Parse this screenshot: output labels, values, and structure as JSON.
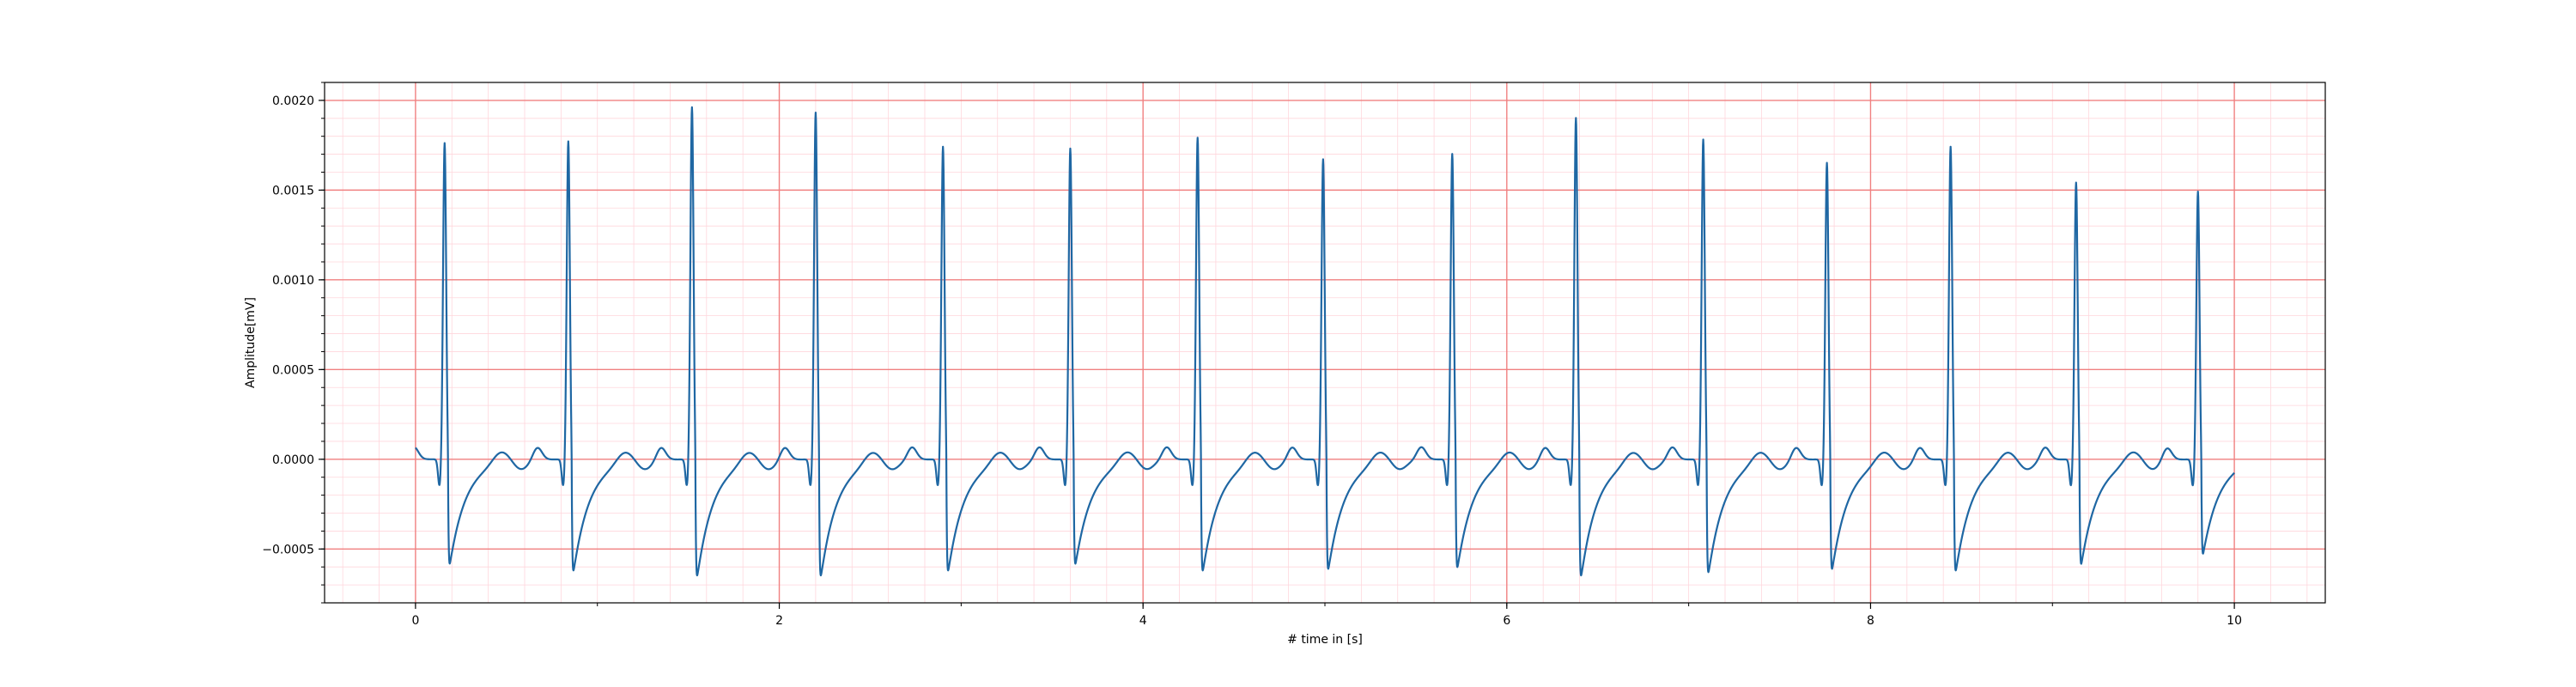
{
  "chart_data": {
    "type": "line",
    "title": "",
    "xlabel": "# time in [s]",
    "ylabel": "Amplitude[mV]",
    "xlim": [
      -0.5,
      10.5
    ],
    "ylim": [
      -0.0008,
      0.0021
    ],
    "x_ticks": [
      0,
      2,
      4,
      6,
      8,
      10
    ],
    "x_tick_labels": [
      "0",
      "2",
      "4",
      "6",
      "8",
      "10"
    ],
    "y_ticks": [
      -0.0005,
      0.0,
      0.0005,
      0.001,
      0.0015,
      0.002
    ],
    "y_tick_labels": [
      "−0.0005",
      "0.0000",
      "0.0005",
      "0.0010",
      "0.0015",
      "0.0020"
    ],
    "grid": true,
    "major_grid_color": "#f08080",
    "minor_grid_color": "#ffd6dc",
    "line_color": "#1f67a3",
    "x_start": 0,
    "x_end": 10,
    "beats": [
      {
        "t": 0.16,
        "r": 0.00177,
        "s": -0.00058
      },
      {
        "t": 0.84,
        "r": 0.00178,
        "s": -0.00062
      },
      {
        "t": 1.52,
        "r": 0.00197,
        "s": -0.00065
      },
      {
        "t": 2.2,
        "r": 0.00194,
        "s": -0.00065
      },
      {
        "t": 2.9,
        "r": 0.00175,
        "s": -0.00062
      },
      {
        "t": 3.6,
        "r": 0.00174,
        "s": -0.00058
      },
      {
        "t": 4.3,
        "r": 0.0018,
        "s": -0.00062
      },
      {
        "t": 4.99,
        "r": 0.00168,
        "s": -0.00061
      },
      {
        "t": 5.7,
        "r": 0.00171,
        "s": -0.0006
      },
      {
        "t": 6.38,
        "r": 0.00191,
        "s": -0.00065
      },
      {
        "t": 7.08,
        "r": 0.00179,
        "s": -0.00063
      },
      {
        "t": 7.76,
        "r": 0.00166,
        "s": -0.00061
      },
      {
        "t": 8.44,
        "r": 0.00175,
        "s": -0.00062
      },
      {
        "t": 9.13,
        "r": 0.00155,
        "s": -0.00058
      },
      {
        "t": 9.8,
        "r": 0.0015,
        "s": -0.00052
      }
    ]
  }
}
